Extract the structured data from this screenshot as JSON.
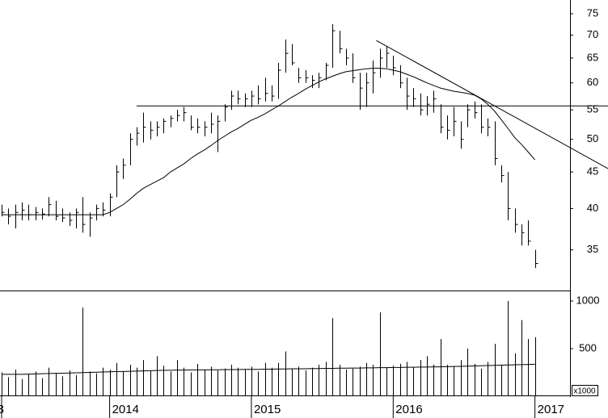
{
  "chart_data": [
    {
      "type": "ohlc",
      "log_scale": true,
      "color": "#000000",
      "categories": [
        "3",
        null,
        null,
        null,
        null,
        null,
        null,
        null,
        null,
        null,
        null,
        null,
        null,
        null,
        null,
        null,
        "2014",
        null,
        null,
        null,
        null,
        null,
        null,
        null,
        null,
        null,
        null,
        null,
        null,
        null,
        null,
        null,
        null,
        null,
        null,
        null,
        null,
        "2015",
        null,
        null,
        null,
        null,
        null,
        null,
        null,
        null,
        null,
        null,
        null,
        null,
        null,
        null,
        null,
        null,
        null,
        null,
        null,
        null,
        "2016",
        null,
        null,
        null,
        null,
        null,
        null,
        null,
        null,
        null,
        null,
        null,
        null,
        null,
        null,
        null,
        null,
        null,
        null,
        null,
        null,
        "2017"
      ],
      "high": [
        40.5,
        40,
        40.5,
        40.8,
        40.5,
        40.2,
        40,
        41.5,
        41,
        40,
        39.5,
        40,
        41.5,
        39.5,
        40.5,
        40.8,
        42,
        46,
        47,
        51,
        52,
        54.5,
        53,
        53,
        53.5,
        54,
        55,
        55.5,
        54,
        53.5,
        53,
        54.5,
        54,
        56,
        58.5,
        58.5,
        58,
        58.5,
        59.5,
        61,
        59.5,
        64,
        69,
        68,
        63,
        62.5,
        61.5,
        62,
        64,
        72.5,
        71,
        67,
        66,
        62,
        62,
        64.5,
        67,
        67.5,
        65.5,
        63.5,
        61,
        59,
        58,
        57.5,
        58.5,
        56,
        54,
        55.5,
        53,
        56,
        56.5,
        56,
        53.5,
        53,
        46,
        45,
        40,
        38,
        38.5,
        35
      ],
      "low": [
        39,
        38,
        37.5,
        38.5,
        38.5,
        38.5,
        38.6,
        39,
        38.5,
        38.3,
        37.8,
        37.5,
        37,
        36.5,
        38.5,
        39,
        39,
        41.5,
        44,
        46,
        49,
        49.5,
        50,
        50.5,
        51,
        52,
        53,
        53,
        51.5,
        51,
        50.5,
        51,
        48,
        53,
        55,
        56,
        55.5,
        55.5,
        56,
        56.5,
        56.5,
        57,
        62,
        63.5,
        60,
        60,
        59,
        59,
        60.5,
        63,
        66,
        63.5,
        60,
        55,
        55.5,
        58,
        61,
        63,
        61.5,
        59,
        55,
        55.5,
        54,
        54,
        54.5,
        51,
        50,
        50.5,
        48.5,
        52,
        53.5,
        51,
        50.5,
        46,
        43.5,
        38.5,
        37,
        35.5,
        35.5,
        33
      ],
      "close": [
        39.5,
        39,
        39.5,
        39.8,
        39.2,
        39.5,
        39.3,
        40.5,
        39,
        38.8,
        38.5,
        39.5,
        38,
        38.8,
        40,
        39.8,
        41.5,
        45,
        46,
        50,
        51,
        52,
        51.5,
        52,
        53,
        53.5,
        54,
        54.5,
        52,
        52,
        52,
        52.5,
        53,
        55.5,
        57.5,
        57,
        57,
        57.5,
        57,
        58,
        57.5,
        62.5,
        66,
        64,
        61,
        61,
        60.5,
        61,
        63.5,
        71,
        67,
        65,
        61,
        59,
        60,
        62,
        65,
        66,
        63,
        60,
        57.5,
        57,
        55,
        56,
        57,
        52,
        51.5,
        53,
        50,
        55,
        54.5,
        52,
        52,
        47,
        44.5,
        40,
        38,
        37,
        36,
        33.5
      ],
      "ma": [
        39.2,
        39.2,
        39.2,
        39.2,
        39.2,
        39.2,
        39.2,
        39.2,
        39.2,
        39.2,
        39.2,
        39.2,
        39.2,
        39.2,
        39.2,
        39.2,
        39.5,
        40,
        40.5,
        41.2,
        42,
        42.7,
        43.2,
        43.7,
        44.2,
        45,
        45.6,
        46.2,
        47,
        47.7,
        48.3,
        49,
        49.8,
        50.5,
        51.2,
        51.8,
        52.5,
        53.2,
        53.7,
        54.3,
        55,
        55.7,
        56.5,
        57.3,
        58,
        58.8,
        59.5,
        60.2,
        60.8,
        61.3,
        61.8,
        62.2,
        62.4,
        62.6,
        62.8,
        62.9,
        62.9,
        62.8,
        62.5,
        62.2,
        61.7,
        61.2,
        60.6,
        60,
        59.5,
        59,
        58.7,
        58.4,
        58.2,
        58,
        57.7,
        57,
        56,
        54.8,
        53.3,
        51.8,
        50.3,
        49.2,
        48,
        46.8
      ],
      "ylim": [
        30.7,
        78.4
      ],
      "yticks": [
        35,
        40,
        45,
        50,
        55,
        60,
        65,
        70,
        75
      ],
      "lines": [
        {
          "x": [
            20,
            90
          ],
          "y": [
            55.7,
            55.7
          ]
        },
        {
          "x": [
            55.5,
            90
          ],
          "y": [
            68.8,
            45.4
          ]
        }
      ]
    },
    {
      "type": "bar",
      "color": "#000000",
      "unit_label": "x1000",
      "values": [
        250,
        200,
        280,
        180,
        230,
        260,
        190,
        300,
        240,
        210,
        270,
        220,
        930,
        260,
        240,
        300,
        280,
        350,
        260,
        330,
        300,
        380,
        270,
        420,
        320,
        260,
        380,
        300,
        250,
        340,
        280,
        310,
        270,
        290,
        330,
        300,
        280,
        310,
        260,
        350,
        300,
        350,
        470,
        290,
        310,
        270,
        300,
        330,
        360,
        820,
        330,
        280,
        290,
        310,
        350,
        330,
        880,
        300,
        320,
        340,
        360,
        300,
        380,
        420,
        330,
        600,
        330,
        310,
        380,
        500,
        340,
        290,
        360,
        550,
        330,
        1000,
        450,
        800,
        600,
        620
      ],
      "ma": [
        230,
        230,
        230,
        230,
        232,
        234,
        236,
        238,
        240,
        242,
        244,
        246,
        248,
        250,
        252,
        254,
        256,
        258,
        260,
        262,
        264,
        266,
        268,
        270,
        272,
        272,
        274,
        274,
        276,
        276,
        276,
        278,
        278,
        280,
        280,
        280,
        282,
        282,
        282,
        284,
        284,
        286,
        286,
        288,
        288,
        288,
        290,
        290,
        292,
        292,
        294,
        294,
        296,
        296,
        298,
        298,
        300,
        300,
        302,
        302,
        304,
        304,
        306,
        306,
        308,
        308,
        310,
        312,
        314,
        316,
        318,
        320,
        322,
        324,
        326,
        328,
        330,
        332,
        334,
        336
      ],
      "ylim": [
        0,
        1093
      ],
      "yticks": [
        500,
        1000
      ]
    }
  ]
}
